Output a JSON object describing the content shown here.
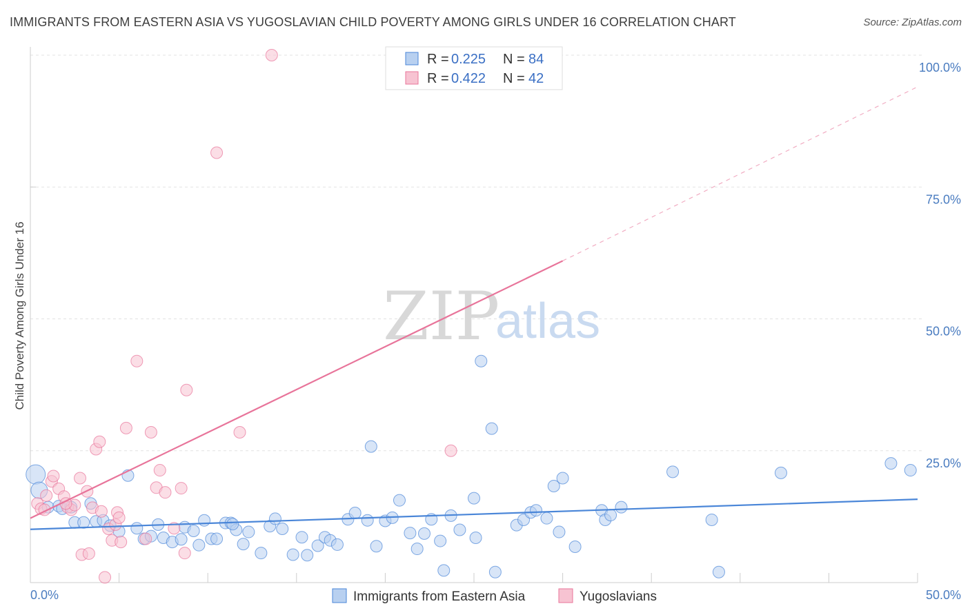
{
  "header": {
    "title": "IMMIGRANTS FROM EASTERN ASIA VS YUGOSLAVIAN CHILD POVERTY AMONG GIRLS UNDER 16 CORRELATION CHART",
    "source": "Source: ZipAtlas.com"
  },
  "watermark": {
    "zip": "ZIP",
    "atlas": "atlas"
  },
  "legend": {
    "items": [
      {
        "r_label": "R =",
        "r_value": "0.225",
        "n_label": "N =",
        "n_value": "84"
      },
      {
        "r_label": "R =",
        "r_value": "0.422",
        "n_label": "N =",
        "n_value": "42"
      }
    ]
  },
  "chart_data": {
    "type": "scatter",
    "title": "IMMIGRANTS FROM EASTERN ASIA VS YUGOSLAVIAN CHILD POVERTY AMONG GIRLS UNDER 16 CORRELATION CHART",
    "xlabel": "",
    "ylabel": "Child Poverty Among Girls Under 16",
    "xlim": [
      0,
      50
    ],
    "ylim": [
      0,
      100
    ],
    "x_tick_labels": [
      "0.0%",
      "50.0%"
    ],
    "y_ticks": [
      25,
      50,
      75,
      100
    ],
    "y_tick_labels": [
      "25.0%",
      "50.0%",
      "75.0%",
      "100.0%"
    ],
    "grid": true,
    "legend_position": "top-center",
    "colors": {
      "blue": "#4a86d8",
      "pink": "#e8749a",
      "blue_fill": "#b8d0f0",
      "pink_fill": "#f7c3d2"
    },
    "series": [
      {
        "name": "Immigrants from Eastern Asia",
        "color": "#4a86d8",
        "trend": {
          "x": [
            0,
            50
          ],
          "y": [
            10.1,
            15.8
          ],
          "style": "solid"
        },
        "points": [
          [
            0.3,
            20.5
          ],
          [
            0.5,
            17.5
          ],
          [
            1.0,
            14.3
          ],
          [
            1.6,
            14.5
          ],
          [
            1.8,
            14.0
          ],
          [
            2.3,
            14.3
          ],
          [
            2.5,
            11.4
          ],
          [
            3.0,
            11.4
          ],
          [
            3.4,
            15.0
          ],
          [
            3.7,
            11.6
          ],
          [
            4.1,
            11.8
          ],
          [
            4.5,
            10.8
          ],
          [
            5.0,
            9.7
          ],
          [
            5.5,
            20.3
          ],
          [
            6.0,
            10.3
          ],
          [
            6.4,
            8.3
          ],
          [
            6.8,
            8.8
          ],
          [
            7.2,
            11.0
          ],
          [
            7.5,
            8.5
          ],
          [
            8.0,
            7.7
          ],
          [
            8.5,
            8.2
          ],
          [
            8.7,
            10.5
          ],
          [
            9.2,
            9.8
          ],
          [
            9.5,
            7.1
          ],
          [
            9.8,
            11.8
          ],
          [
            10.2,
            8.3
          ],
          [
            10.5,
            8.3
          ],
          [
            11.0,
            11.3
          ],
          [
            11.3,
            11.3
          ],
          [
            11.6,
            10.0
          ],
          [
            12.0,
            7.3
          ],
          [
            12.3,
            9.6
          ],
          [
            13.0,
            5.6
          ],
          [
            13.5,
            10.7
          ],
          [
            13.8,
            12.1
          ],
          [
            14.2,
            10.2
          ],
          [
            14.8,
            5.3
          ],
          [
            15.3,
            8.6
          ],
          [
            15.6,
            5.2
          ],
          [
            16.2,
            7.0
          ],
          [
            16.6,
            8.6
          ],
          [
            16.9,
            8.0
          ],
          [
            17.3,
            7.2
          ],
          [
            17.9,
            12.0
          ],
          [
            18.3,
            13.2
          ],
          [
            19.0,
            11.8
          ],
          [
            19.5,
            6.9
          ],
          [
            19.2,
            25.8
          ],
          [
            20.0,
            11.7
          ],
          [
            20.4,
            12.3
          ],
          [
            20.8,
            15.6
          ],
          [
            21.4,
            9.4
          ],
          [
            21.8,
            6.4
          ],
          [
            22.2,
            9.3
          ],
          [
            22.6,
            12.0
          ],
          [
            23.1,
            7.9
          ],
          [
            23.3,
            2.3
          ],
          [
            23.7,
            12.7
          ],
          [
            24.2,
            10.0
          ],
          [
            25.0,
            16.0
          ],
          [
            25.1,
            8.5
          ],
          [
            25.4,
            42.0
          ],
          [
            26.0,
            29.2
          ],
          [
            26.2,
            2.0
          ],
          [
            27.4,
            10.9
          ],
          [
            27.8,
            11.9
          ],
          [
            28.2,
            13.3
          ],
          [
            28.5,
            13.7
          ],
          [
            29.1,
            12.2
          ],
          [
            29.5,
            18.3
          ],
          [
            29.8,
            9.6
          ],
          [
            30.0,
            19.8
          ],
          [
            30.7,
            6.8
          ],
          [
            32.2,
            13.7
          ],
          [
            32.4,
            11.9
          ],
          [
            32.7,
            12.8
          ],
          [
            33.3,
            14.3
          ],
          [
            36.2,
            21.0
          ],
          [
            38.4,
            11.9
          ],
          [
            38.8,
            2.0
          ],
          [
            42.3,
            20.8
          ],
          [
            48.5,
            22.6
          ],
          [
            49.6,
            21.3
          ],
          [
            11.4,
            11.1
          ]
        ]
      },
      {
        "name": "Yugoslavians",
        "color": "#e8749a",
        "trend": {
          "x": [
            0,
            30
          ],
          "y": [
            12.2,
            61.0
          ],
          "style": "solid",
          "extension": {
            "x": [
              30,
              50
            ],
            "y": [
              61.0,
              94.0
            ],
            "style": "dashed"
          }
        },
        "points": [
          [
            0.4,
            15.0
          ],
          [
            0.6,
            14.0
          ],
          [
            0.9,
            16.5
          ],
          [
            1.2,
            19.2
          ],
          [
            1.3,
            20.2
          ],
          [
            1.6,
            17.8
          ],
          [
            1.9,
            16.3
          ],
          [
            2.1,
            14.3
          ],
          [
            2.3,
            13.8
          ],
          [
            2.5,
            14.7
          ],
          [
            2.8,
            19.8
          ],
          [
            2.9,
            5.3
          ],
          [
            3.2,
            17.3
          ],
          [
            3.3,
            5.5
          ],
          [
            3.5,
            14.2
          ],
          [
            3.7,
            25.3
          ],
          [
            3.9,
            26.7
          ],
          [
            4.2,
            1.0
          ],
          [
            4.4,
            10.2
          ],
          [
            4.6,
            8.0
          ],
          [
            4.8,
            11.0
          ],
          [
            4.9,
            13.3
          ],
          [
            5.1,
            7.7
          ],
          [
            5.4,
            29.3
          ],
          [
            6.0,
            42.0
          ],
          [
            6.5,
            8.3
          ],
          [
            6.8,
            28.5
          ],
          [
            7.1,
            18.0
          ],
          [
            7.3,
            21.3
          ],
          [
            7.6,
            17.1
          ],
          [
            8.1,
            10.3
          ],
          [
            8.5,
            17.9
          ],
          [
            8.7,
            5.6
          ],
          [
            8.8,
            36.5
          ],
          [
            10.5,
            81.5
          ],
          [
            11.8,
            28.5
          ],
          [
            13.6,
            100.0
          ],
          [
            23.7,
            25.0
          ],
          [
            4.0,
            13.5
          ],
          [
            2.0,
            15.0
          ],
          [
            5.0,
            12.3
          ],
          [
            0.8,
            13.8
          ]
        ]
      }
    ]
  },
  "bottom_legend": {
    "items": [
      {
        "label": "Immigrants from Eastern Asia"
      },
      {
        "label": "Yugoslavians"
      }
    ]
  }
}
